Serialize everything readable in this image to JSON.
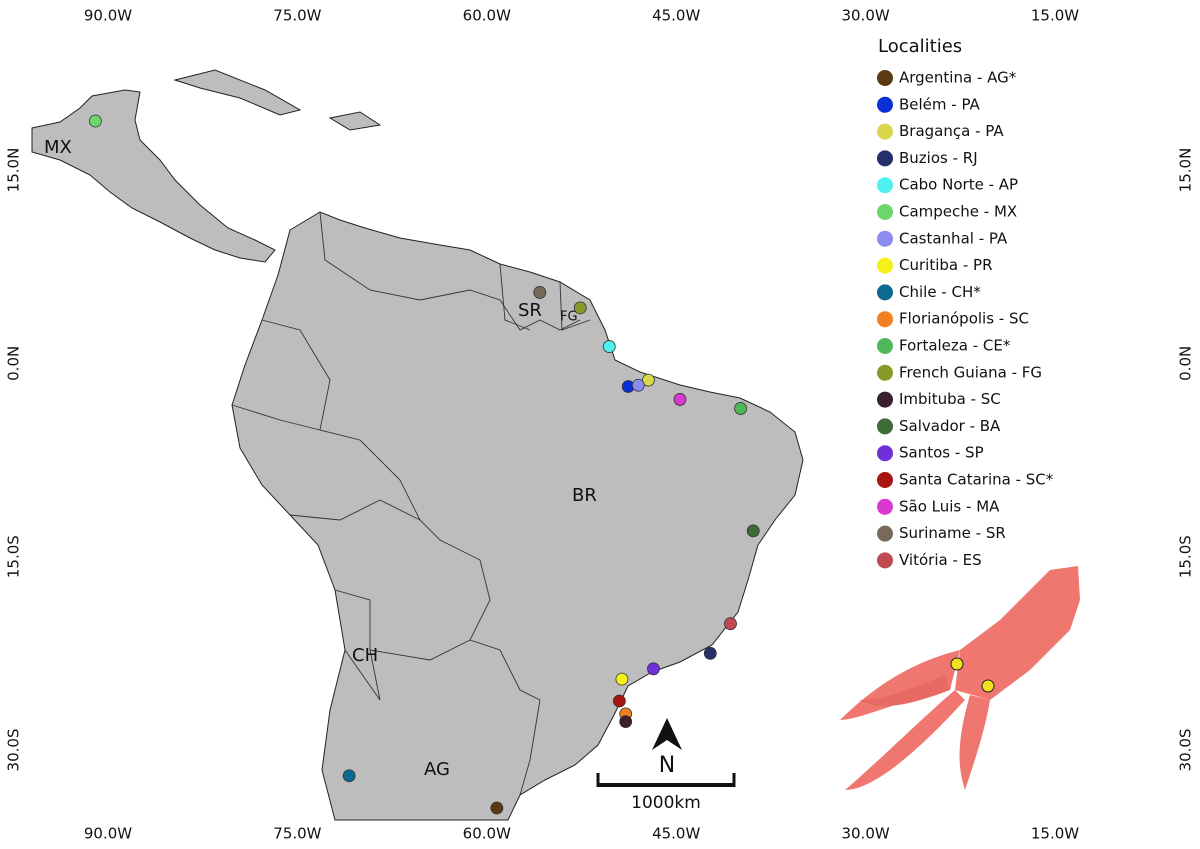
{
  "axes": {
    "top": [
      {
        "value": -90,
        "label": "90.0W"
      },
      {
        "value": -75,
        "label": "75.0W"
      },
      {
        "value": -60,
        "label": "60.0W"
      },
      {
        "value": -45,
        "label": "45.0W"
      },
      {
        "value": -30,
        "label": "30.0W"
      },
      {
        "value": -15,
        "label": "15.0W"
      }
    ],
    "bottom": [
      {
        "value": -90,
        "label": "90.0W"
      },
      {
        "value": -75,
        "label": "75.0W"
      },
      {
        "value": -60,
        "label": "60.0W"
      },
      {
        "value": -45,
        "label": "45.0W"
      },
      {
        "value": -30,
        "label": "30.0W"
      },
      {
        "value": -15,
        "label": "15.0W"
      }
    ],
    "left": [
      {
        "value": 15,
        "label": "15.0N"
      },
      {
        "value": 0,
        "label": "0.0N"
      },
      {
        "value": -15,
        "label": "15.0S"
      },
      {
        "value": -30,
        "label": "30.0S"
      }
    ],
    "right": [
      {
        "value": 15,
        "label": "15.0N"
      },
      {
        "value": 0,
        "label": "0.0N"
      },
      {
        "value": -15,
        "label": "15.0S"
      },
      {
        "value": -30,
        "label": "30.0S"
      }
    ]
  },
  "country_labels": [
    "MX",
    "SR",
    "FG",
    "BR",
    "CH",
    "AG"
  ],
  "legend": {
    "title": "Localities",
    "items": [
      {
        "name": "Argentina - AG*",
        "color": "#5a3a12",
        "lon": -59.2,
        "lat": -34.5
      },
      {
        "name": "Belém - PA",
        "color": "#0a2fd6",
        "lon": -48.8,
        "lat": -1.8
      },
      {
        "name": "Bragança - PA",
        "color": "#d8d84a",
        "lon": -47.2,
        "lat": -1.3
      },
      {
        "name": "Buzios - RJ",
        "color": "#24306a",
        "lon": -42.3,
        "lat": -22.5
      },
      {
        "name": "Cabo Norte - AP",
        "color": "#4ef0f0",
        "lon": -50.3,
        "lat": 1.3
      },
      {
        "name": "Campeche - MX",
        "color": "#6cd66c",
        "lon": -91.0,
        "lat": 18.8
      },
      {
        "name": "Castanhal - PA",
        "color": "#8c8cf0",
        "lon": -48.0,
        "lat": -1.7
      },
      {
        "name": "Curitiba - PR",
        "color": "#f5f01a",
        "lon": -49.3,
        "lat": -24.5
      },
      {
        "name": "Chile - CH*",
        "color": "#0b6a90",
        "lon": -70.9,
        "lat": -32.0
      },
      {
        "name": "Florianópolis - SC",
        "color": "#f47f20",
        "lon": -49.0,
        "lat": -27.2
      },
      {
        "name": "Fortaleza - CE*",
        "color": "#4fb85a",
        "lon": -39.9,
        "lat": -3.5
      },
      {
        "name": "French Guiana - FG",
        "color": "#8a9a2a",
        "lon": -52.6,
        "lat": 4.3
      },
      {
        "name": "Imbituba - SC",
        "color": "#3a1f2e",
        "lon": -49.0,
        "lat": -27.8
      },
      {
        "name": "Salvador - BA",
        "color": "#3e6a38",
        "lon": -38.9,
        "lat": -13.0
      },
      {
        "name": "Santos - SP",
        "color": "#7030d8",
        "lon": -46.8,
        "lat": -23.7
      },
      {
        "name": "Santa Catarina - SC*",
        "color": "#a81410",
        "lon": -49.5,
        "lat": -26.2
      },
      {
        "name": "São Luis - MA",
        "color": "#d838d0",
        "lon": -44.7,
        "lat": -2.8
      },
      {
        "name": "Suriname - SR",
        "color": "#786a58",
        "lon": -55.8,
        "lat": 5.5
      },
      {
        "name": "Vitória - ES",
        "color": "#c04a52",
        "lon": -40.7,
        "lat": -20.2
      }
    ]
  },
  "scale_bar": "1000km",
  "north": "N"
}
